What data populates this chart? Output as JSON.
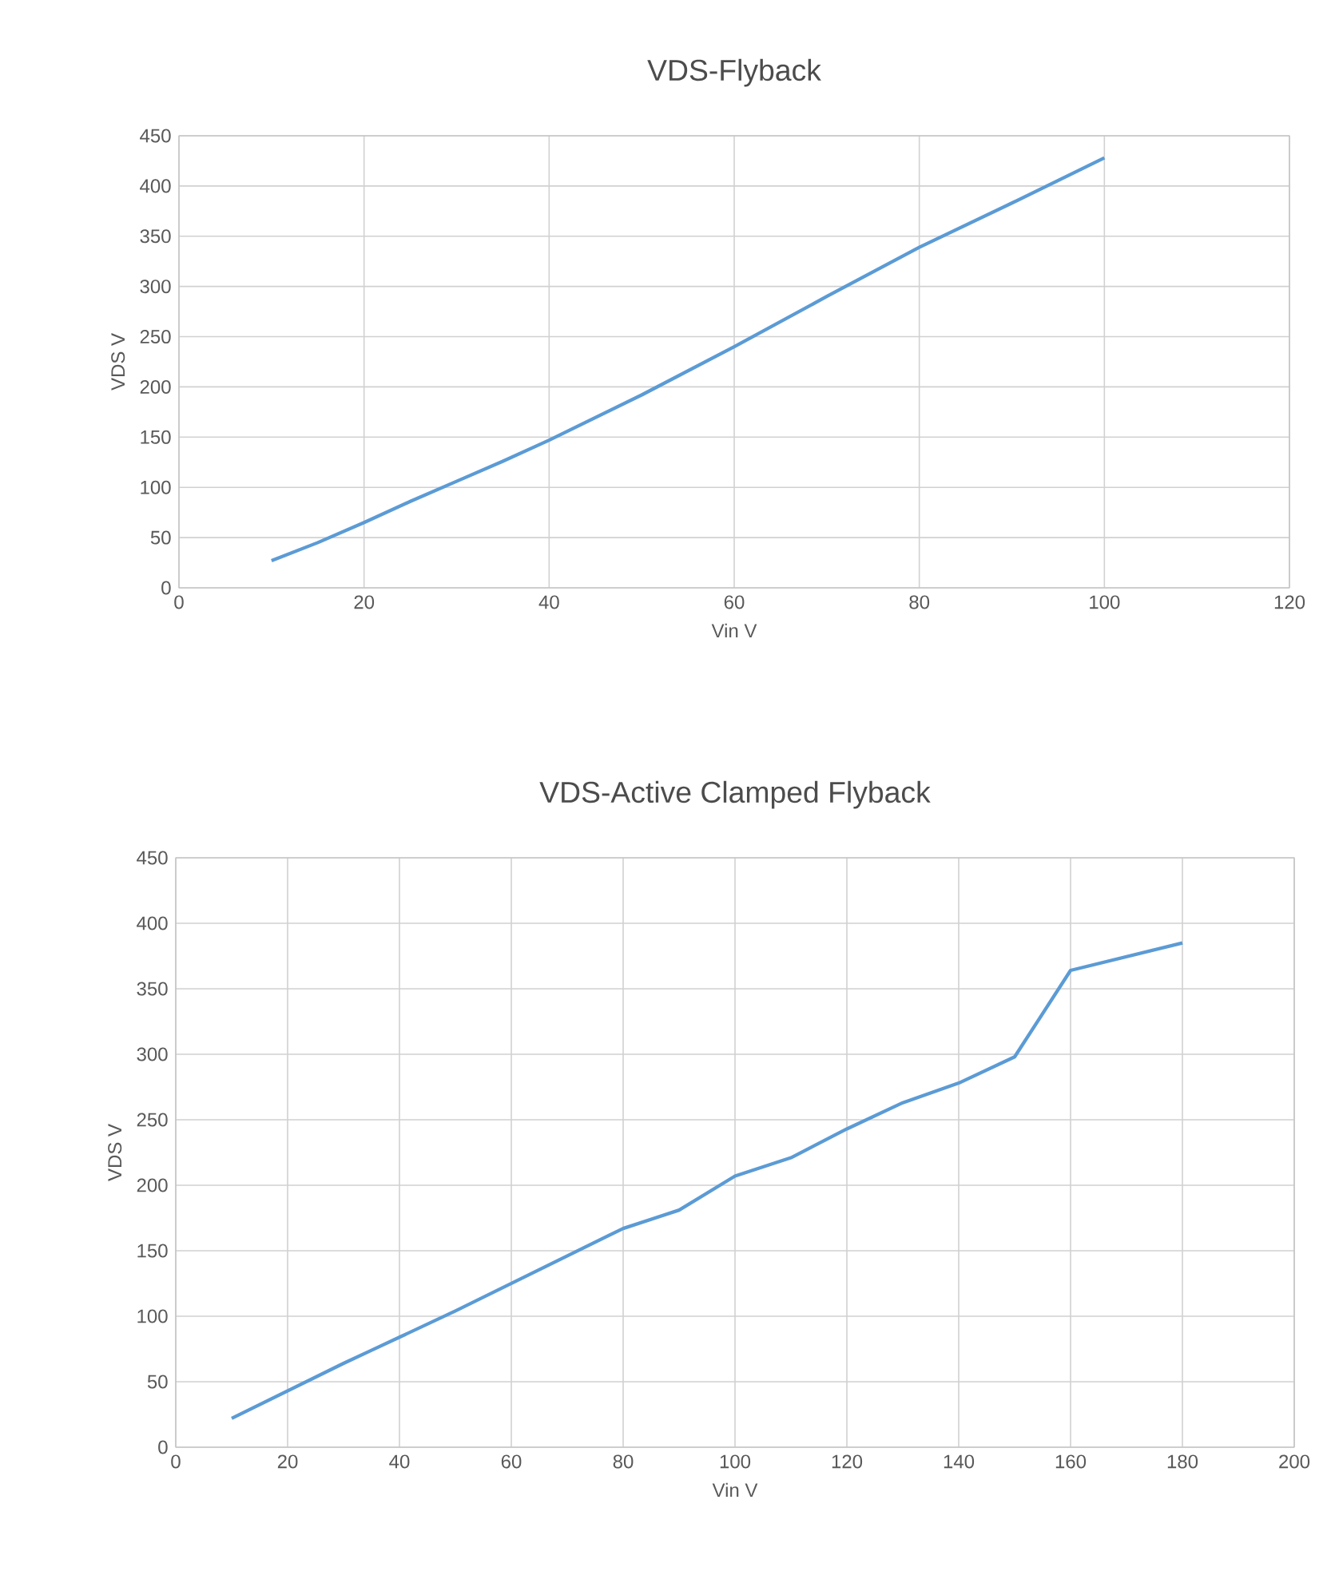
{
  "chart_data": [
    {
      "type": "line",
      "title": "VDS-Flyback",
      "xlabel": "Vin V",
      "ylabel": "VDS  V",
      "xlim": [
        0,
        120
      ],
      "ylim": [
        0,
        450
      ],
      "xticks": [
        0,
        20,
        40,
        60,
        80,
        100,
        120
      ],
      "yticks": [
        0,
        50,
        100,
        150,
        200,
        250,
        300,
        350,
        400,
        450
      ],
      "grid": true,
      "series": [
        {
          "color": "#5b9bd5",
          "x": [
            10,
            15,
            20,
            25,
            30,
            35,
            40,
            50,
            60,
            70,
            80,
            90,
            100
          ],
          "values": [
            27,
            45,
            65,
            86,
            106,
            126,
            147,
            192,
            240,
            290,
            339,
            383,
            428
          ]
        }
      ]
    },
    {
      "type": "line",
      "title": "VDS-Active Clamped Flyback",
      "xlabel": "Vin V",
      "ylabel": "VDS V",
      "xlim": [
        0,
        200
      ],
      "ylim": [
        0,
        450
      ],
      "xticks": [
        0,
        20,
        40,
        60,
        80,
        100,
        120,
        140,
        160,
        180,
        200
      ],
      "yticks": [
        0,
        50,
        100,
        150,
        200,
        250,
        300,
        350,
        400,
        450
      ],
      "grid": true,
      "series": [
        {
          "color": "#5b9bd5",
          "x": [
            10,
            20,
            30,
            35,
            40,
            50,
            60,
            70,
            80,
            90,
            100,
            110,
            120,
            130,
            140,
            150,
            160,
            180
          ],
          "values": [
            22,
            43,
            64,
            74,
            84,
            104,
            125,
            146,
            167,
            181,
            207,
            221,
            243,
            263,
            278,
            298,
            364,
            385
          ]
        }
      ]
    }
  ]
}
